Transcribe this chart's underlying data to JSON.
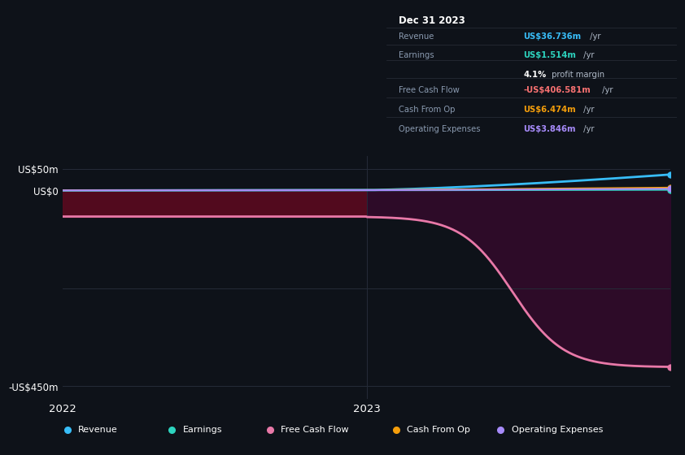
{
  "bg_color": "#0e1219",
  "plot_bg_color": "#0e1219",
  "ylim": [
    -480,
    80
  ],
  "ytick_vals": [
    50,
    0,
    -450
  ],
  "ytick_labels": [
    "US$50m",
    "US$0",
    "-US$450m"
  ],
  "xtick_positions": [
    0.0,
    1.0
  ],
  "xtick_labels": [
    "2022",
    "2023"
  ],
  "grid_color": "#252b38",
  "vline_color": "#252b38",
  "fill_left_color": "#5a0a1f",
  "fill_right_color": "#2a0a30",
  "line_colors": {
    "revenue": "#38bdf8",
    "earnings": "#2dd4bf",
    "free_cash_flow": "#e879a8",
    "cash_from_op": "#f59e0b",
    "operating_expenses": "#a78bfa"
  },
  "legend_labels": [
    "Revenue",
    "Earnings",
    "Free Cash Flow",
    "Cash From Op",
    "Operating Expenses"
  ],
  "legend_colors": [
    "#38bdf8",
    "#2dd4bf",
    "#e879a8",
    "#f59e0b",
    "#a78bfa"
  ],
  "box_bg": "#111520",
  "box_border": "#2a2f3a",
  "box_title": "Dec 31 2023",
  "box_rows": [
    {
      "label": "Revenue",
      "value": "US$36.736m",
      "suffix": " /yr",
      "value_color": "#38bdf8"
    },
    {
      "label": "Earnings",
      "value": "US$1.514m",
      "suffix": " /yr",
      "value_color": "#2dd4bf"
    },
    {
      "label": "",
      "value": "4.1%",
      "suffix": " profit margin",
      "value_color": "#ffffff"
    },
    {
      "label": "Free Cash Flow",
      "value": "-US$406.581m",
      "suffix": " /yr",
      "value_color": "#f87171"
    },
    {
      "label": "Cash From Op",
      "value": "US$6.474m",
      "suffix": " /yr",
      "value_color": "#f59e0b"
    },
    {
      "label": "Operating Expenses",
      "value": "US$3.846m",
      "suffix": " /yr",
      "value_color": "#a78bfa"
    }
  ]
}
